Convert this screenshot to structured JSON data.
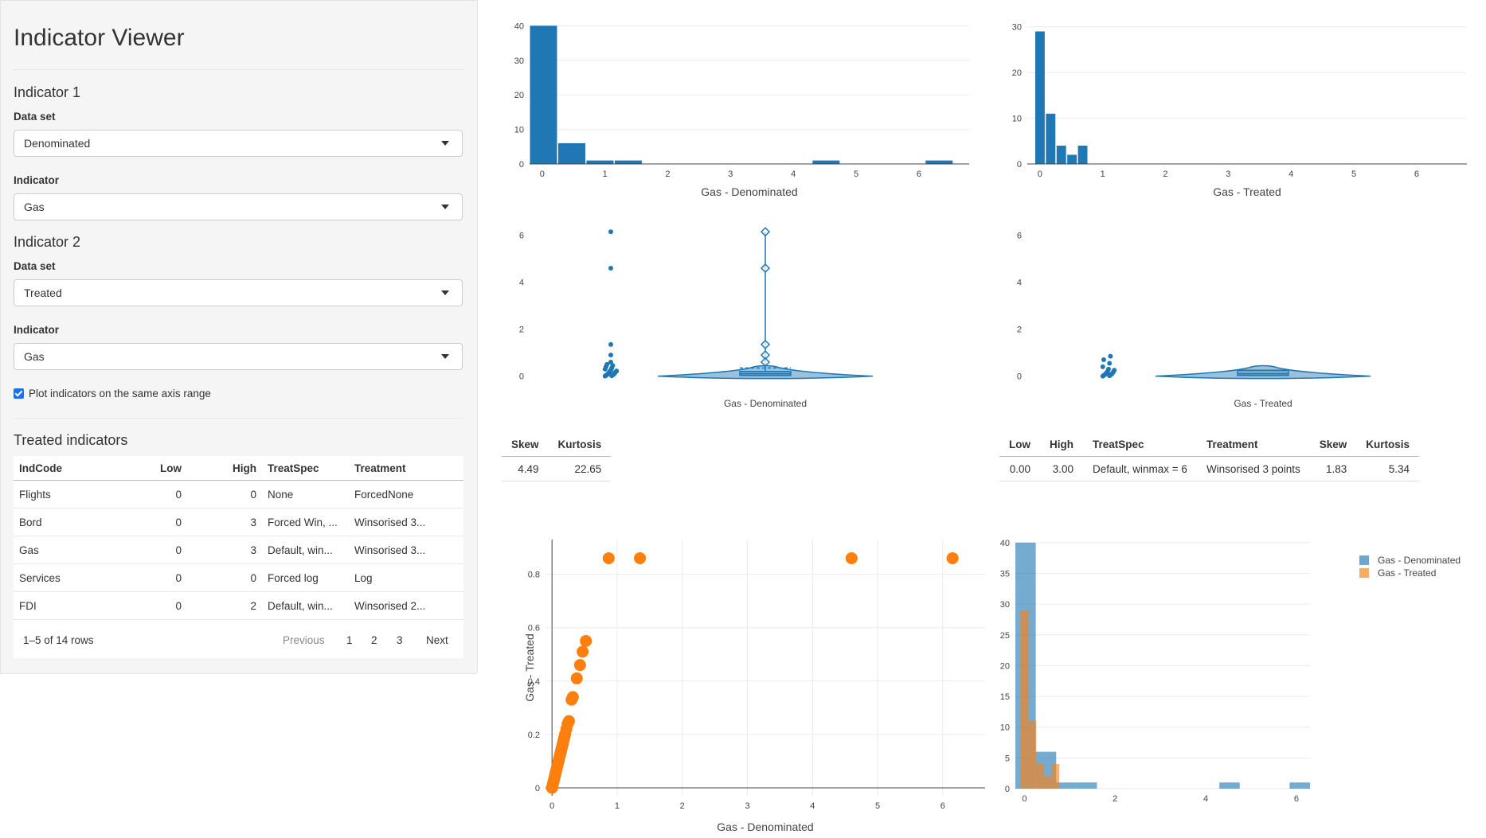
{
  "sidebar": {
    "title": "Indicator Viewer",
    "indicator1": {
      "heading": "Indicator 1",
      "dataset_label": "Data set",
      "dataset_value": "Denominated",
      "indicator_label": "Indicator",
      "indicator_value": "Gas"
    },
    "indicator2": {
      "heading": "Indicator 2",
      "dataset_label": "Data set",
      "dataset_value": "Treated",
      "indicator_label": "Indicator",
      "indicator_value": "Gas"
    },
    "same_axis_label": "Plot indicators on the same axis range",
    "same_axis_checked": true,
    "treated_heading": "Treated indicators",
    "table": {
      "columns": [
        "IndCode",
        "Low",
        "High",
        "TreatSpec",
        "Treatment"
      ],
      "rows": [
        [
          "Flights",
          "0",
          "0",
          "None",
          "ForcedNone"
        ],
        [
          "Bord",
          "0",
          "3",
          "Forced Win, ...",
          "Winsorised 3..."
        ],
        [
          "Gas",
          "0",
          "3",
          "Default, win...",
          "Winsorised 3..."
        ],
        [
          "Services",
          "0",
          "0",
          "Forced log",
          "Log"
        ],
        [
          "FDI",
          "0",
          "2",
          "Default, win...",
          "Winsorised 2..."
        ]
      ],
      "info": "1–5 of 14 rows",
      "prev": "Previous",
      "pages": [
        "1",
        "2",
        "3"
      ],
      "next": "Next"
    }
  },
  "colors": {
    "blue": "#1f77b4",
    "orange": "#ff7f0e",
    "select_icon": "chevron-down-icon"
  },
  "stats1": {
    "headers": [
      "Skew",
      "Kurtosis"
    ],
    "values": [
      "4.49",
      "22.65"
    ]
  },
  "stats2": {
    "headers": [
      "Low",
      "High",
      "TreatSpec",
      "Treatment",
      "Skew",
      "Kurtosis"
    ],
    "values": [
      "0.00",
      "3.00",
      "Default, winmax = 6",
      "Winsorised 3 points",
      "1.83",
      "5.34"
    ]
  },
  "chart_data": [
    {
      "id": "hist1",
      "type": "bar",
      "xlabel": "Gas - Denominated",
      "xlim": [
        -0.2,
        6.8
      ],
      "ylim": [
        0,
        41
      ],
      "xticks": [
        0,
        1,
        2,
        3,
        4,
        5,
        6
      ],
      "yticks": [
        0,
        10,
        20,
        30,
        40
      ],
      "bin_width": 0.45,
      "bin_starts": [
        -0.2,
        0.25,
        0.7,
        1.15,
        1.6,
        2.05,
        2.5,
        2.95,
        3.4,
        3.85,
        4.3,
        4.75,
        5.2,
        5.65,
        6.1
      ],
      "counts": [
        40,
        6,
        1,
        1,
        0,
        0,
        0,
        0,
        0,
        0,
        1,
        0,
        0,
        0,
        1
      ],
      "color": "#1f77b4"
    },
    {
      "id": "hist2",
      "type": "bar",
      "xlabel": "Gas - Treated",
      "xlim": [
        -0.2,
        6.8
      ],
      "ylim": [
        0,
        31
      ],
      "xticks": [
        0,
        1,
        2,
        3,
        4,
        5,
        6
      ],
      "yticks": [
        0,
        10,
        20,
        30
      ],
      "bin_width": 0.17,
      "bin_starts": [
        -0.08,
        0.09,
        0.26,
        0.43,
        0.6
      ],
      "counts": [
        29,
        11,
        4,
        2,
        4
      ],
      "color": "#1f77b4"
    },
    {
      "id": "violin1",
      "type": "violin",
      "xlabel": "Gas - Denominated",
      "ylim": [
        -0.35,
        6.6
      ],
      "yticks": [
        0,
        2,
        4,
        6
      ],
      "outliers": [
        6.15,
        4.6,
        1.35,
        0.9,
        0.6
      ],
      "points": [
        0.0,
        0.02,
        0.03,
        0.05,
        0.06,
        0.08,
        0.1,
        0.12,
        0.15,
        0.18,
        0.2,
        0.22,
        0.25,
        0.3,
        0.35,
        0.4,
        0.45,
        0.5
      ],
      "box": {
        "q1": 0.03,
        "median": 0.1,
        "q3": 0.2,
        "mean": 0.35,
        "whisker_high": 0.5
      },
      "color": "#1f77b4"
    },
    {
      "id": "violin2",
      "type": "violin",
      "xlabel": "Gas - Treated",
      "ylim": [
        -0.35,
        6.6
      ],
      "yticks": [
        0,
        2,
        4,
        6
      ],
      "outliers": [],
      "points": [
        0.0,
        0.02,
        0.03,
        0.05,
        0.06,
        0.08,
        0.1,
        0.12,
        0.15,
        0.18,
        0.2,
        0.25,
        0.3,
        0.4,
        0.55,
        0.7,
        0.85
      ],
      "box": {
        "q1": 0.03,
        "median": 0.1,
        "q3": 0.25,
        "mean": 0.25,
        "whisker_high": 0.55
      },
      "color": "#1f77b4"
    },
    {
      "id": "scatter",
      "type": "scatter",
      "xlabel": "Gas - Denominated",
      "ylabel": "Gas - Treated",
      "xlim": [
        -0.1,
        6.65
      ],
      "ylim": [
        -0.03,
        0.93
      ],
      "xticks": [
        0,
        1,
        2,
        3,
        4,
        5,
        6
      ],
      "yticks": [
        0,
        0.2,
        0.4,
        0.6,
        0.8
      ],
      "x": [
        0.0,
        0.01,
        0.02,
        0.03,
        0.04,
        0.05,
        0.06,
        0.07,
        0.08,
        0.09,
        0.1,
        0.11,
        0.12,
        0.13,
        0.14,
        0.15,
        0.16,
        0.17,
        0.18,
        0.19,
        0.2,
        0.22,
        0.24,
        0.26,
        0.3,
        0.32,
        0.38,
        0.43,
        0.47,
        0.52,
        0.87,
        1.35,
        4.6,
        6.15
      ],
      "y": [
        0.0,
        0.01,
        0.02,
        0.03,
        0.04,
        0.05,
        0.06,
        0.07,
        0.08,
        0.09,
        0.1,
        0.11,
        0.12,
        0.13,
        0.14,
        0.15,
        0.16,
        0.17,
        0.18,
        0.19,
        0.2,
        0.22,
        0.24,
        0.25,
        0.33,
        0.34,
        0.41,
        0.46,
        0.51,
        0.55,
        0.86,
        0.86,
        0.86,
        0.86
      ],
      "color": "#ff7f0e"
    },
    {
      "id": "overlay",
      "type": "bar",
      "xlim": [
        -0.2,
        6.3
      ],
      "ylim": [
        0,
        40.5
      ],
      "xticks": [
        0,
        2,
        4,
        6
      ],
      "yticks": [
        0,
        5,
        10,
        15,
        20,
        25,
        30,
        35,
        40
      ],
      "series": [
        {
          "name": "Gas - Denominated",
          "bin_width": 0.45,
          "bin_starts": [
            -0.2,
            0.25,
            0.7,
            1.15,
            1.6,
            4.3,
            5.85
          ],
          "counts": [
            40,
            6,
            1,
            1,
            0,
            1,
            1
          ],
          "color": "#1f77b4"
        },
        {
          "name": "Gas - Treated",
          "bin_width": 0.17,
          "bin_starts": [
            -0.08,
            0.09,
            0.26,
            0.43,
            0.6
          ],
          "counts": [
            29,
            11,
            4,
            2,
            4
          ],
          "color": "#ff7f0e"
        }
      ]
    }
  ]
}
